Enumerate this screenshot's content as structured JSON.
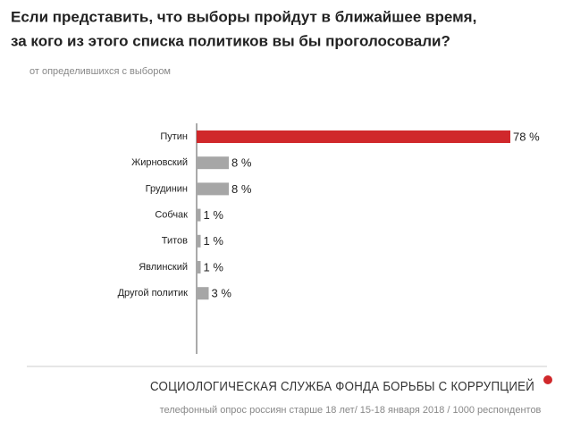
{
  "chart_data": {
    "type": "bar",
    "orientation": "horizontal",
    "title": [
      "Если представить, что выборы пройдут в ближайшее время,",
      "за кого из этого списка политиков вы бы проголосовали?"
    ],
    "subtitle": "от определившихся с выбором",
    "categories": [
      "Путин",
      "Жирновский",
      "Грудинин",
      "Собчак",
      "Титов",
      "Явлинский",
      "Другой политик"
    ],
    "values": [
      78,
      8,
      8,
      1,
      1,
      1,
      3
    ],
    "value_labels": [
      "78 %",
      "8 %",
      "8 %",
      "1 %",
      "1 %",
      "1 %",
      "3 %"
    ],
    "colors": [
      "#d0282b",
      "#a6a6a6",
      "#a6a6a6",
      "#a6a6a6",
      "#a6a6a6",
      "#a6a6a6",
      "#a6a6a6"
    ],
    "footer": "СОЦИОЛОГИЧЕСКАЯ СЛУЖБА ФОНДА БОРЬБЫ С КОРРУПЦИЕЙ",
    "source": "телефонный опрос россиян старше 18 лет/ 15-18 января 2018 / 1000 респондентов"
  }
}
